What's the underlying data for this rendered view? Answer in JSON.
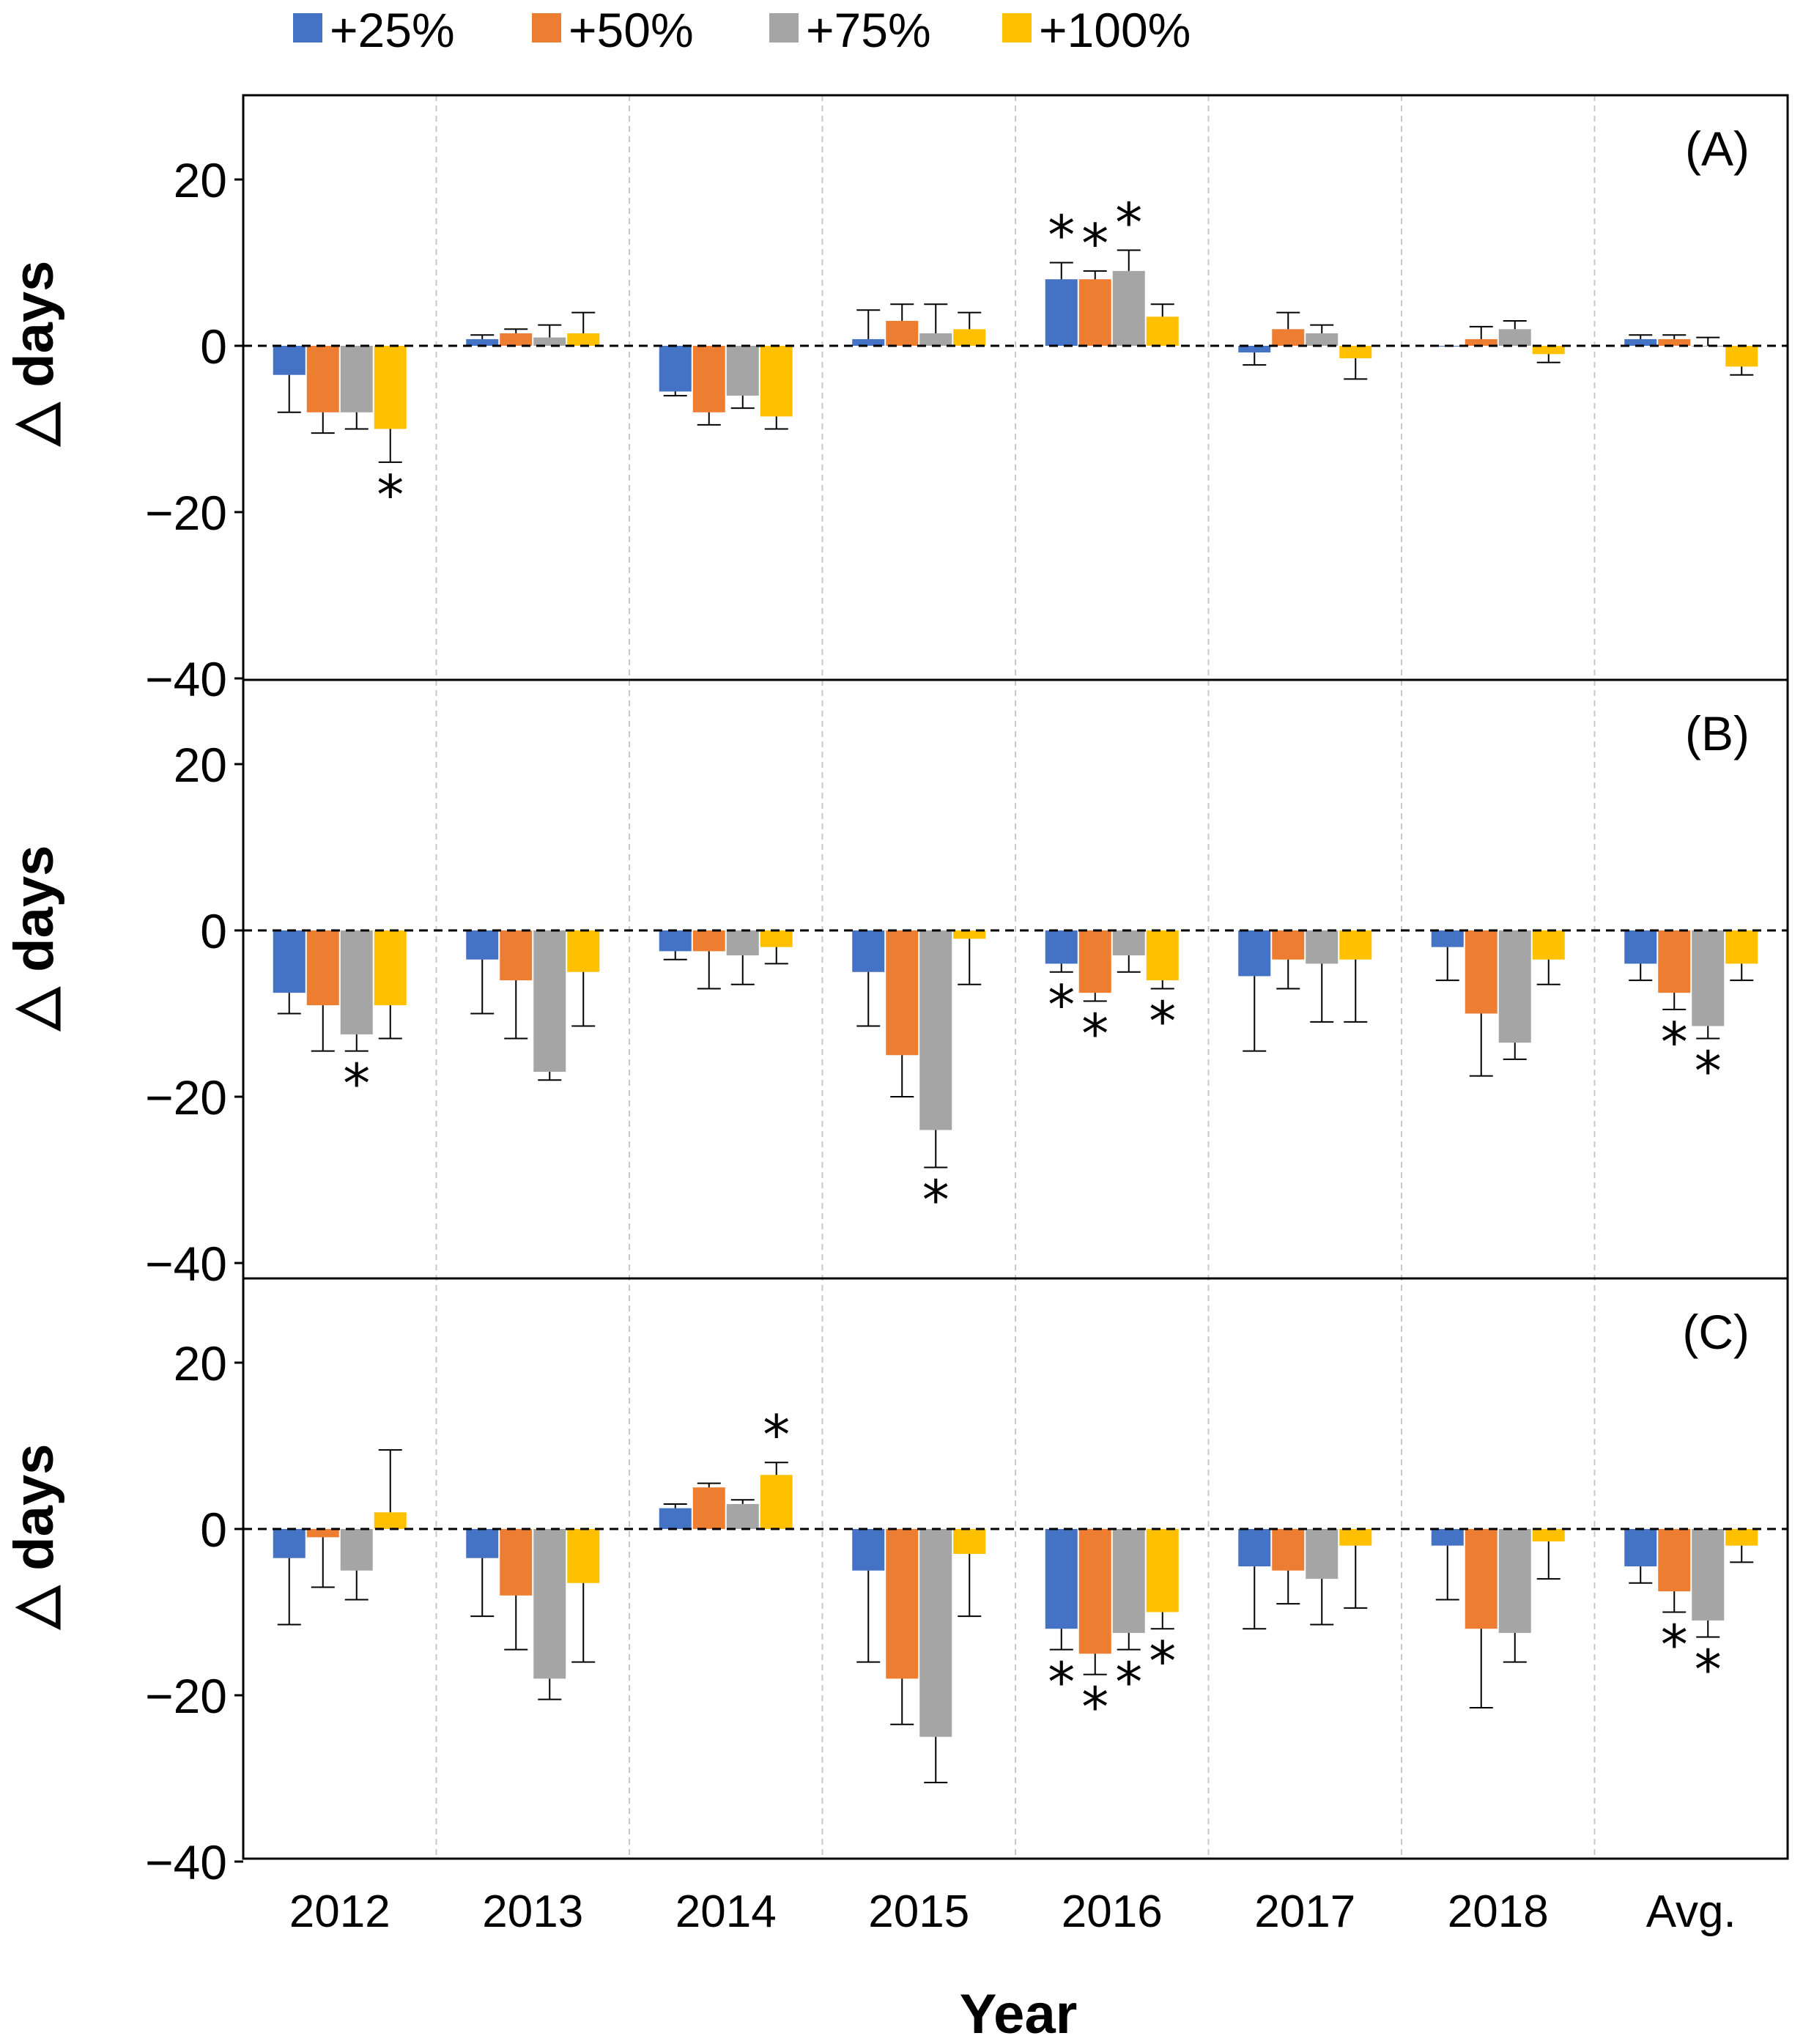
{
  "chart_data": {
    "type": "bar",
    "xlabel": "Year",
    "ylabel": "△ days",
    "ylim": [
      -40,
      28
    ],
    "yticks": [
      20,
      0,
      -20,
      -40
    ],
    "yticks_text": [
      "20",
      "0",
      "−20",
      "−40"
    ],
    "categories": [
      "2012",
      "2013",
      "2014",
      "2015",
      "2016",
      "2017",
      "2018",
      "Avg."
    ],
    "legend": [
      {
        "name": "+25%",
        "color": "#4472C4"
      },
      {
        "name": "+50%",
        "color": "#ED7D31"
      },
      {
        "name": "+75%",
        "color": "#A5A5A5"
      },
      {
        "name": "+100%",
        "color": "#FFC000"
      }
    ],
    "significance_marker": "*",
    "panels": [
      {
        "label": "(A)",
        "series": [
          {
            "name": "+25%",
            "values": [
              -3.5,
              0.8,
              -5.5,
              0.8,
              8.0,
              -0.8,
              0.0,
              0.8
            ],
            "errors": [
              4.5,
              0.5,
              0.5,
              3.5,
              2.0,
              1.5,
              0.0,
              0.5
            ]
          },
          {
            "name": "+50%",
            "values": [
              -8.0,
              1.5,
              -8.0,
              3.0,
              8.0,
              2.0,
              0.8,
              0.8
            ],
            "errors": [
              2.5,
              0.5,
              1.5,
              2.0,
              1.0,
              2.0,
              1.5,
              0.5
            ]
          },
          {
            "name": "+75%",
            "values": [
              -8.0,
              1.0,
              -6.0,
              1.5,
              9.0,
              1.5,
              2.0,
              0.0
            ],
            "errors": [
              2.0,
              1.5,
              1.5,
              3.5,
              2.5,
              1.0,
              1.0,
              1.0
            ]
          },
          {
            "name": "+100%",
            "values": [
              -10.0,
              1.5,
              -8.5,
              2.0,
              3.5,
              -1.5,
              -1.0,
              -2.5
            ],
            "errors": [
              4.0,
              2.5,
              1.5,
              2.0,
              1.5,
              2.5,
              1.0,
              1.0
            ]
          }
        ],
        "stars": [
          [
            0,
            3,
            "below"
          ],
          [
            4,
            0,
            "above"
          ],
          [
            4,
            1,
            "above"
          ],
          [
            4,
            2,
            "above"
          ]
        ]
      },
      {
        "label": "(B)",
        "series": [
          {
            "name": "+25%",
            "values": [
              -7.5,
              -3.5,
              -2.5,
              -5.0,
              -4.0,
              -5.5,
              -2.0,
              -4.0
            ],
            "errors": [
              2.5,
              6.5,
              1.0,
              6.5,
              1.0,
              9.0,
              4.0,
              2.0
            ]
          },
          {
            "name": "+50%",
            "values": [
              -9.0,
              -6.0,
              -2.5,
              -15.0,
              -7.5,
              -3.5,
              -10.0,
              -7.5
            ],
            "errors": [
              5.5,
              7.0,
              4.5,
              5.0,
              1.0,
              3.5,
              7.5,
              2.0
            ]
          },
          {
            "name": "+75%",
            "values": [
              -12.5,
              -17.0,
              -3.0,
              -24.0,
              -3.0,
              -4.0,
              -13.5,
              -11.5
            ],
            "errors": [
              2.0,
              1.0,
              3.5,
              4.5,
              2.0,
              7.0,
              2.0,
              1.5
            ]
          },
          {
            "name": "+100%",
            "values": [
              -9.0,
              -5.0,
              -2.0,
              -1.0,
              -6.0,
              -3.5,
              -3.5,
              -4.0
            ],
            "errors": [
              4.0,
              6.5,
              2.0,
              5.5,
              1.0,
              7.5,
              3.0,
              2.0
            ]
          }
        ],
        "stars": [
          [
            0,
            2,
            "below"
          ],
          [
            3,
            2,
            "below"
          ],
          [
            4,
            0,
            "below"
          ],
          [
            4,
            1,
            "below"
          ],
          [
            4,
            3,
            "below"
          ],
          [
            7,
            1,
            "below"
          ],
          [
            7,
            2,
            "below"
          ]
        ]
      },
      {
        "label": "(C)",
        "series": [
          {
            "name": "+25%",
            "values": [
              -3.5,
              -3.5,
              2.5,
              -5.0,
              -12.0,
              -4.5,
              -2.0,
              -4.5
            ],
            "errors": [
              8.0,
              7.0,
              0.5,
              11.0,
              2.5,
              7.5,
              6.5,
              2.0
            ]
          },
          {
            "name": "+50%",
            "values": [
              -1.0,
              -8.0,
              5.0,
              -18.0,
              -15.0,
              -5.0,
              -12.0,
              -7.5
            ],
            "errors": [
              6.0,
              6.5,
              0.5,
              5.5,
              2.5,
              4.0,
              9.5,
              2.5
            ]
          },
          {
            "name": "+75%",
            "values": [
              -5.0,
              -18.0,
              3.0,
              -25.0,
              -12.5,
              -6.0,
              -12.5,
              -11.0
            ],
            "errors": [
              3.5,
              2.5,
              0.5,
              5.5,
              2.0,
              5.5,
              3.5,
              2.0
            ]
          },
          {
            "name": "+100%",
            "values": [
              2.0,
              -6.5,
              6.5,
              -3.0,
              -10.0,
              -2.0,
              -1.5,
              -2.0
            ],
            "errors": [
              7.5,
              9.5,
              1.5,
              7.5,
              2.0,
              7.5,
              4.5,
              2.0
            ]
          }
        ],
        "stars": [
          [
            2,
            3,
            "above"
          ],
          [
            4,
            0,
            "below"
          ],
          [
            4,
            1,
            "below"
          ],
          [
            4,
            2,
            "below"
          ],
          [
            4,
            3,
            "below"
          ],
          [
            7,
            1,
            "below"
          ],
          [
            7,
            2,
            "below"
          ]
        ]
      }
    ]
  }
}
